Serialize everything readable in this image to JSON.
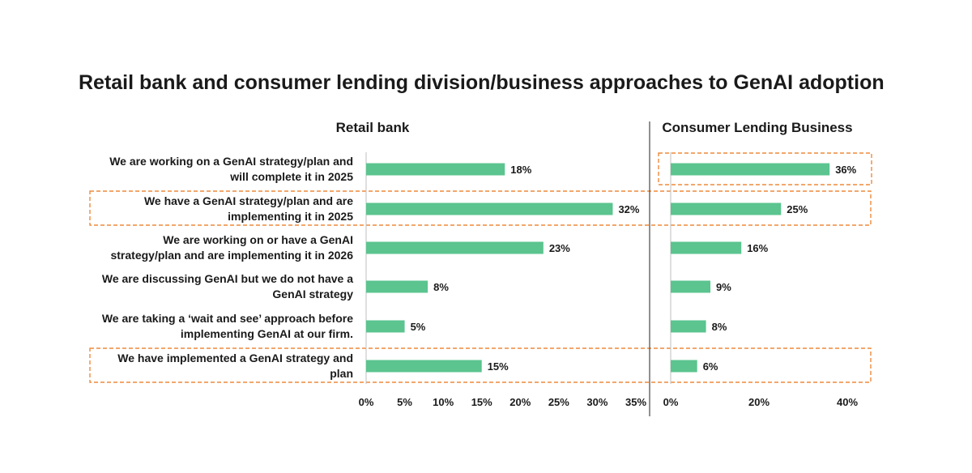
{
  "chart_data": {
    "type": "bar",
    "orientation": "horizontal",
    "title": "Retail bank and consumer lending division/business approaches to GenAI adoption",
    "categories": [
      "We are working on a GenAI strategy/plan and will complete it in 2025",
      "We have a GenAI strategy/plan and are implementing it in 2025",
      "We are working on or have a GenAI strategy/plan and are implementing it in 2026",
      "We are discussing GenAI but we do not have a GenAI strategy",
      "We are taking a ‘wait and see’ approach before implementing GenAI at our firm.",
      "We have implemented a GenAI strategy and plan"
    ],
    "panels": [
      {
        "name": "Retail bank",
        "values": [
          18,
          32,
          23,
          8,
          5,
          15
        ],
        "value_labels": [
          "18%",
          "32%",
          "23%",
          "8%",
          "5%",
          "15%"
        ],
        "xlim": [
          0,
          35
        ],
        "ticks": [
          "0%",
          "5%",
          "10%",
          "15%",
          "20%",
          "25%",
          "30%",
          "35%"
        ]
      },
      {
        "name": "Consumer Lending Business",
        "values": [
          36,
          25,
          16,
          9,
          8,
          6
        ],
        "value_labels": [
          "36%",
          "25%",
          "16%",
          "9%",
          "8%",
          "6%"
        ],
        "xlim": [
          0,
          40
        ],
        "ticks": [
          "0%",
          "20%",
          "40%"
        ]
      }
    ],
    "highlighted_rows": [
      1,
      5
    ],
    "highlighted_consumer_rows": [
      0
    ],
    "bar_color": "#5bc48f",
    "highlight_color": "#ee8a3c",
    "grid": false
  }
}
